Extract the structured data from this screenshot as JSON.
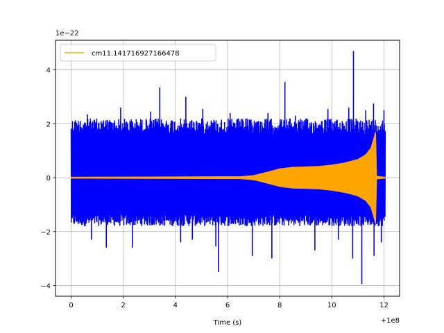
{
  "chart_data": {
    "type": "line",
    "title": "",
    "xlabel": "Time (s)",
    "ylabel": "",
    "x_offset_label": "+1e8",
    "y_scale_label": "1e−22",
    "xlim": [
      -0.6,
      12.6
    ],
    "ylim": [
      -4.4,
      5.1
    ],
    "x_ticks": [
      0,
      2,
      4,
      6,
      8,
      10,
      12
    ],
    "x_tick_labels": [
      "0",
      "2",
      "4",
      "6",
      "8",
      "10",
      "12"
    ],
    "y_ticks": [
      -4,
      -2,
      0,
      2,
      4
    ],
    "y_tick_labels": [
      "−4",
      "−2",
      "0",
      "2",
      "4"
    ],
    "grid": true,
    "legend_position": "top-left",
    "series": [
      {
        "name": "",
        "color": "#0000ff",
        "kind": "noise_strain",
        "x_range": [
          0,
          12.05
        ],
        "typical_envelope": [
          -1.8,
          2.2
        ],
        "extreme_points": [
          {
            "x": 0.35,
            "y": 2.1
          },
          {
            "x": 0.62,
            "y": 2.35
          },
          {
            "x": 0.78,
            "y": -2.3
          },
          {
            "x": 1.15,
            "y": 2.1
          },
          {
            "x": 1.35,
            "y": -2.6
          },
          {
            "x": 1.9,
            "y": 2.6
          },
          {
            "x": 2.35,
            "y": -2.6
          },
          {
            "x": 3.05,
            "y": 2.45
          },
          {
            "x": 3.4,
            "y": 3.35
          },
          {
            "x": 4.2,
            "y": -2.4
          },
          {
            "x": 4.4,
            "y": 3.0
          },
          {
            "x": 4.65,
            "y": -2.3
          },
          {
            "x": 5.05,
            "y": 2.55
          },
          {
            "x": 5.55,
            "y": -2.55
          },
          {
            "x": 5.65,
            "y": -3.5
          },
          {
            "x": 6.1,
            "y": 2.4
          },
          {
            "x": 6.6,
            "y": 2.1
          },
          {
            "x": 6.95,
            "y": -2.9
          },
          {
            "x": 7.55,
            "y": 2.4
          },
          {
            "x": 7.7,
            "y": -3.0
          },
          {
            "x": 8.2,
            "y": 3.55
          },
          {
            "x": 8.6,
            "y": 2.3
          },
          {
            "x": 9.35,
            "y": -2.7
          },
          {
            "x": 9.85,
            "y": 2.55
          },
          {
            "x": 10.25,
            "y": -2.3
          },
          {
            "x": 10.65,
            "y": 2.6
          },
          {
            "x": 10.8,
            "y": -3.0
          },
          {
            "x": 10.83,
            "y": 4.7
          },
          {
            "x": 11.15,
            "y": -3.95
          },
          {
            "x": 11.3,
            "y": 2.5
          },
          {
            "x": 11.6,
            "y": 2.75
          },
          {
            "x": 11.62,
            "y": -2.9
          },
          {
            "x": 11.9,
            "y": -2.4
          },
          {
            "x": 12.0,
            "y": 2.5
          }
        ]
      },
      {
        "name": "cm11.141716927166478",
        "color": "#ffa500",
        "kind": "chirp_envelope",
        "envelope": [
          {
            "x": 0.0,
            "a": 0.02
          },
          {
            "x": 6.5,
            "a": 0.04
          },
          {
            "x": 7.0,
            "a": 0.08
          },
          {
            "x": 7.5,
            "a": 0.2
          },
          {
            "x": 8.0,
            "a": 0.33
          },
          {
            "x": 8.5,
            "a": 0.39
          },
          {
            "x": 9.0,
            "a": 0.4
          },
          {
            "x": 9.5,
            "a": 0.42
          },
          {
            "x": 10.0,
            "a": 0.47
          },
          {
            "x": 10.5,
            "a": 0.55
          },
          {
            "x": 11.0,
            "a": 0.68
          },
          {
            "x": 11.3,
            "a": 0.85
          },
          {
            "x": 11.5,
            "a": 1.1
          },
          {
            "x": 11.62,
            "a": 1.5
          },
          {
            "x": 11.68,
            "a": 1.7
          },
          {
            "x": 11.72,
            "a": 0.05
          },
          {
            "x": 12.05,
            "a": 0.02
          }
        ]
      }
    ]
  }
}
